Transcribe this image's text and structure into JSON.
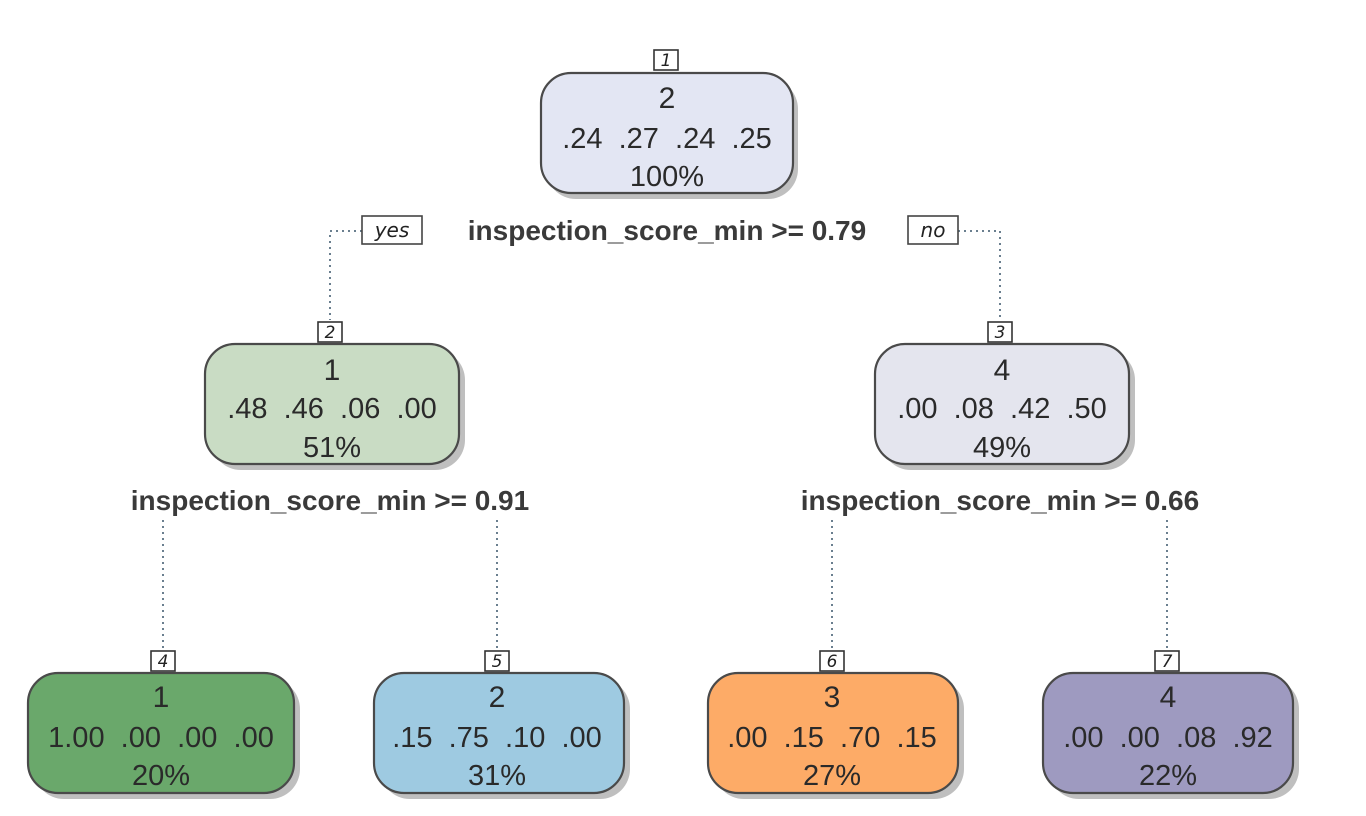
{
  "tree": {
    "nodes": [
      {
        "id": "1",
        "class_label": "2",
        "probs": ".24  .27  .24  .25",
        "percent": "100%",
        "fill": "#e3e6f3"
      },
      {
        "id": "2",
        "class_label": "1",
        "probs": ".48  .46  .06  .00",
        "percent": "51%",
        "fill": "#c9dcc4"
      },
      {
        "id": "3",
        "class_label": "4",
        "probs": ".00  .08  .42  .50",
        "percent": "49%",
        "fill": "#e4e5ee"
      },
      {
        "id": "4",
        "class_label": "1",
        "probs": "1.00  .00  .00  .00",
        "percent": "20%",
        "fill": "#6aa86b"
      },
      {
        "id": "5",
        "class_label": "2",
        "probs": ".15  .75  .10  .00",
        "percent": "31%",
        "fill": "#9ecae1"
      },
      {
        "id": "6",
        "class_label": "3",
        "probs": ".00  .15  .70  .15",
        "percent": "27%",
        "fill": "#fdab67"
      },
      {
        "id": "7",
        "class_label": "4",
        "probs": ".00  .00  .08  .92",
        "percent": "22%",
        "fill": "#9e9ac0"
      }
    ],
    "splits": [
      {
        "node": "1",
        "text": "inspection_score_min >= 0.79"
      },
      {
        "node": "2",
        "text": "inspection_score_min >= 0.91"
      },
      {
        "node": "3",
        "text": "inspection_score_min >= 0.66"
      }
    ],
    "branch_labels": {
      "yes": "yes",
      "no": "no"
    }
  }
}
